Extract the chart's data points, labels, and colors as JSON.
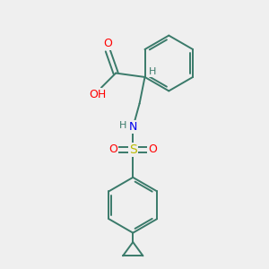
{
  "background_color": "#efefef",
  "bond_color": "#3a7a6a",
  "bond_width": 1.4,
  "atom_colors": {
    "O": "#ff0000",
    "N": "#0000ee",
    "S": "#bbbb00",
    "C": "#3a7a6a",
    "H": "#3a7a6a"
  },
  "font_size": 8,
  "fig_size": [
    3.0,
    3.0
  ],
  "dpi": 100
}
